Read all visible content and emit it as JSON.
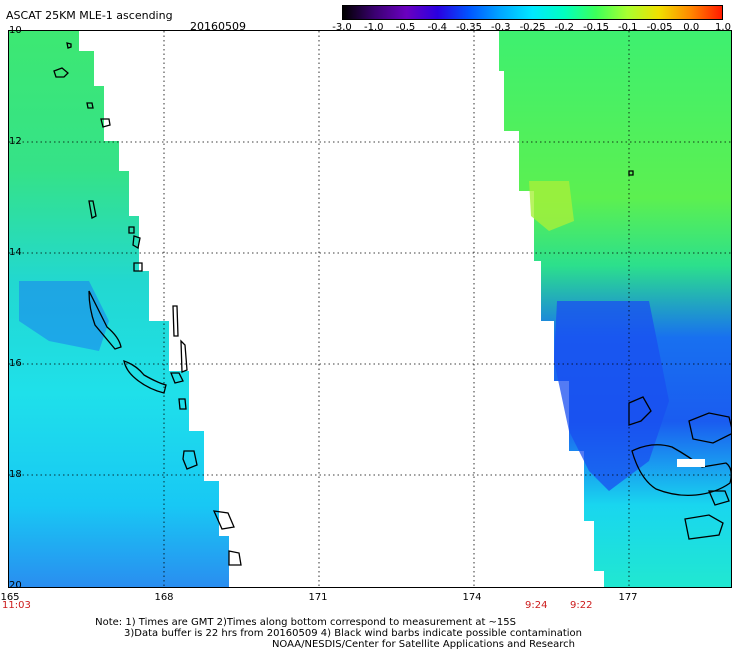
{
  "header": {
    "title": "ASCAT 25KM MLE-1 ascending",
    "date": "20160509"
  },
  "colorbar": {
    "labels": [
      "-3.0",
      "-1.0",
      "-0.5",
      "-0.4",
      "-0.35",
      "-0.3",
      "-0.25",
      "-0.2",
      "-0.15",
      "-0.1",
      "-0.05",
      "0.0",
      "1.0"
    ],
    "colors": [
      "#000000",
      "#3a0070",
      "#6a00c0",
      "#2a00e0",
      "#0055ff",
      "#00a8ff",
      "#00e8ff",
      "#00ffc0",
      "#3cff5a",
      "#a8ff30",
      "#f0e000",
      "#ff8800",
      "#ff1a00"
    ]
  },
  "map": {
    "lat_labels": [
      "10",
      "12",
      "14",
      "16",
      "18",
      "20"
    ],
    "lon_labels": [
      "165",
      "168",
      "171",
      "174",
      "177"
    ],
    "time_labels": {
      "left": "11:03",
      "swath_a": "9:24",
      "swath_b": "9:22"
    }
  },
  "footer": {
    "line1": "Note: 1) Times are GMT 2)Times along bottom correspond to measurement at ~15S",
    "line2": "3)Data buffer is 22 hrs from 20160509 4) Black wind barbs indicate possible contamination",
    "line3": "NOAA/NESDIS/Center for Satellite Applications and Research"
  }
}
